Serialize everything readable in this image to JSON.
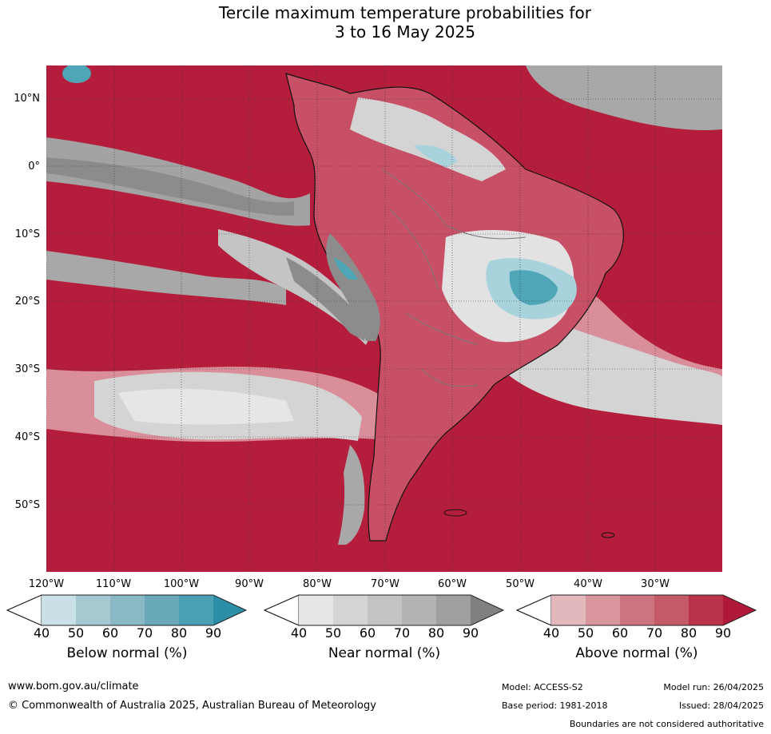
{
  "title": {
    "line1": "Tercile maximum temperature probabilities for",
    "line2": "3 to 16 May 2025"
  },
  "axes": {
    "lat_labels": [
      "10°N",
      "0°",
      "10°S",
      "20°S",
      "30°S",
      "40°S",
      "50°S"
    ],
    "lon_labels": [
      "120°W",
      "110°W",
      "100°W",
      "90°W",
      "80°W",
      "70°W",
      "60°W",
      "50°W",
      "40°W",
      "30°W"
    ]
  },
  "colorbars": [
    {
      "title": "Below normal (%)",
      "ticks": [
        "40",
        "50",
        "60",
        "70",
        "80",
        "90"
      ],
      "colors": [
        "#c8e0e6",
        "#a5c9d1",
        "#8ab9c6",
        "#6aaab8",
        "#4aa0b2",
        "#2c8ea6"
      ]
    },
    {
      "title": "Near normal (%)",
      "ticks": [
        "40",
        "50",
        "60",
        "70",
        "80",
        "90"
      ],
      "colors": [
        "#e6e6e6",
        "#d4d4d4",
        "#c3c3c3",
        "#b3b3b3",
        "#a0a0a0",
        "#808080"
      ]
    },
    {
      "title": "Above normal (%)",
      "ticks": [
        "40",
        "50",
        "60",
        "70",
        "80",
        "90"
      ],
      "colors": [
        "#e3b8bd",
        "#d8959e",
        "#cd7481",
        "#c45a68",
        "#b93248",
        "#b0183a"
      ]
    }
  ],
  "colors": {
    "above_high": "#b41e3c",
    "above_mid": "#c85066",
    "above_low": "#d98e99",
    "near_light": "#e2e2e2",
    "near_mid": "#c0c0c0",
    "near_dark": "#8c8c8c",
    "below_light": "#a9d3dc",
    "below_dark": "#4ea6b6",
    "coast": "#111111",
    "border": "#7a7a7a"
  },
  "footer": {
    "website": "www.bom.gov.au/climate",
    "copyright": "© Commonwealth of Australia 2025, Australian Bureau of Meteorology",
    "model": "Model: ACCESS-S2",
    "base_period": "Base period: 1981-2018",
    "model_run": "Model run: 26/04/2025",
    "issued": "Issued: 28/04/2025",
    "disclaimer": "Boundaries are not considered authoritative"
  }
}
